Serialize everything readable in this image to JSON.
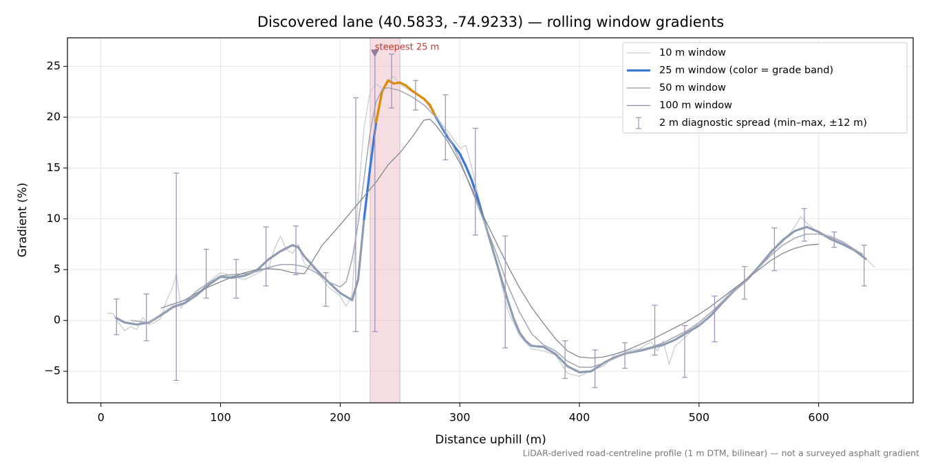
{
  "chart_data": {
    "type": "line",
    "title": "Discovered lane (40.5833, -74.9233) — rolling window gradients",
    "xlabel": "Distance uphill (m)",
    "ylabel": "Gradient (%)",
    "note": "LiDAR-derived road-centreline profile (1 m DTM, bilinear) — not a surveyed asphalt gradient",
    "xlim": [
      -28,
      679
    ],
    "ylim": [
      -8.1,
      27.8
    ],
    "xticks": [
      0,
      100,
      200,
      300,
      400,
      500,
      600
    ],
    "yticks": [
      {
        "value": -5,
        "label": "−5"
      },
      0,
      5,
      10,
      15,
      20,
      25
    ],
    "grid": true,
    "legend": "upper right",
    "steepest": {
      "label": "steepest 25 m",
      "start": 225,
      "end": 250,
      "color": "#e8b4bc",
      "marker": [
        229,
        26.3
      ],
      "marker_color": "#8c7f99",
      "label_color": "#c0392b"
    },
    "series": [
      {
        "name": "10 m window",
        "color": "#c8ccd4",
        "width": 1.3,
        "x": [
          5,
          10,
          15,
          20,
          25,
          30,
          35,
          40,
          45,
          50,
          55,
          60,
          63,
          67,
          70,
          80,
          90,
          100,
          110,
          120,
          130,
          140,
          145,
          150,
          155,
          160,
          165,
          170,
          180,
          190,
          200,
          205,
          210,
          215,
          220,
          225,
          230,
          235,
          240,
          245,
          250,
          260,
          270,
          280,
          290,
          300,
          305,
          310,
          320,
          330,
          340,
          350,
          360,
          370,
          380,
          390,
          400,
          410,
          420,
          430,
          440,
          450,
          460,
          465,
          470,
          475,
          480,
          490,
          500,
          510,
          520,
          530,
          540,
          550,
          560,
          570,
          580,
          585,
          590,
          600,
          610,
          620,
          630,
          640,
          647
        ],
        "values": [
          0.7,
          0.7,
          -0.3,
          -1.0,
          -0.6,
          -0.9,
          0.3,
          -0.4,
          -0.2,
          0.2,
          2.0,
          3.3,
          4.6,
          1.2,
          1.8,
          2.4,
          3.8,
          4.7,
          4.4,
          4.0,
          4.6,
          5.2,
          7.0,
          8.3,
          7.0,
          6.6,
          7.5,
          5.6,
          4.9,
          3.3,
          2.4,
          1.4,
          2.5,
          12.0,
          19.0,
          22.5,
          23.3,
          22.8,
          23.6,
          24.0,
          23.2,
          22.5,
          21.8,
          20.0,
          18.6,
          17.0,
          17.2,
          15.0,
          10.0,
          6.0,
          1.0,
          -1.5,
          -2.8,
          -3.0,
          -3.4,
          -5.2,
          -5.5,
          -4.9,
          -4.5,
          -3.3,
          -3.0,
          -2.8,
          -2.1,
          -3.0,
          -2.0,
          -4.3,
          -2.5,
          -1.5,
          -0.2,
          0.8,
          2.0,
          3.2,
          3.9,
          5.2,
          6.8,
          7.7,
          9.2,
          10.2,
          9.6,
          8.6,
          8.3,
          7.8,
          7.0,
          6.0,
          5.2
        ]
      },
      {
        "name": "25 m window (color = grade band)",
        "color": "#3b78d8",
        "line_color": "#8e9bb0",
        "width": 3.2,
        "grade_bands": [
          {
            "from": 10,
            "color": "#3b78d8"
          },
          {
            "from": 20,
            "color": "#e08a00"
          }
        ],
        "x": [
          12,
          20,
          30,
          40,
          50,
          60,
          70,
          80,
          90,
          100,
          110,
          120,
          130,
          140,
          150,
          160,
          165,
          170,
          180,
          190,
          200,
          210,
          215,
          220,
          225,
          230,
          235,
          240,
          245,
          250,
          255,
          260,
          265,
          270,
          275,
          280,
          285,
          290,
          295,
          300,
          305,
          310,
          315,
          320,
          325,
          330,
          335,
          340,
          345,
          350,
          355,
          360,
          370,
          380,
          390,
          400,
          410,
          420,
          430,
          440,
          450,
          460,
          470,
          480,
          490,
          500,
          510,
          520,
          530,
          540,
          550,
          560,
          570,
          580,
          590,
          600,
          610,
          620,
          630,
          640
        ],
        "values": [
          0.3,
          -0.2,
          -0.4,
          -0.2,
          0.5,
          1.3,
          1.7,
          2.5,
          3.5,
          4.3,
          4.2,
          4.4,
          4.9,
          6.0,
          6.8,
          7.4,
          7.2,
          6.3,
          5.0,
          3.8,
          2.7,
          2.0,
          4.0,
          10.0,
          15.0,
          19.5,
          22.5,
          23.6,
          23.3,
          23.4,
          23.1,
          22.6,
          22.2,
          21.8,
          21.2,
          20.0,
          19.0,
          18.0,
          17.2,
          16.4,
          15.2,
          13.8,
          12.0,
          10.0,
          8.0,
          6.0,
          4.0,
          2.0,
          0.2,
          -1.2,
          -2.0,
          -2.5,
          -2.6,
          -3.3,
          -4.5,
          -5.1,
          -5.0,
          -4.2,
          -3.6,
          -3.2,
          -3.0,
          -2.7,
          -2.4,
          -1.9,
          -1.2,
          -0.5,
          0.5,
          1.8,
          3.0,
          4.0,
          5.3,
          6.7,
          7.9,
          8.8,
          9.2,
          8.7,
          8.0,
          7.5,
          6.9,
          6.0
        ]
      },
      {
        "name": "50 m window",
        "color": "#a3aab6",
        "width": 1.6,
        "x": [
          25,
          40,
          50,
          60,
          70,
          80,
          90,
          100,
          110,
          120,
          130,
          140,
          150,
          160,
          170,
          180,
          190,
          200,
          205,
          210,
          215,
          220,
          225,
          230,
          235,
          240,
          250,
          260,
          270,
          280,
          290,
          300,
          310,
          320,
          330,
          340,
          350,
          360,
          370,
          380,
          390,
          400,
          410,
          420,
          430,
          440,
          450,
          460,
          470,
          480,
          490,
          500,
          510,
          520,
          530,
          540,
          550,
          560,
          570,
          580,
          590,
          600,
          610,
          620,
          630,
          637
        ],
        "values": [
          0,
          -0.2,
          0.6,
          1.4,
          1.8,
          2.9,
          3.7,
          4.4,
          4.5,
          4.6,
          4.8,
          5.2,
          5.5,
          5.5,
          5.3,
          4.7,
          3.8,
          3.3,
          3.8,
          6.0,
          9.5,
          14.0,
          18.5,
          21.5,
          22.7,
          22.9,
          22.6,
          22.0,
          21.2,
          20.0,
          18.2,
          15.8,
          12.8,
          9.8,
          6.8,
          3.5,
          0.8,
          -1.3,
          -2.4,
          -3.0,
          -4.0,
          -4.6,
          -4.6,
          -4.2,
          -3.7,
          -3.2,
          -2.9,
          -2.6,
          -2.2,
          -1.6,
          -1.0,
          -0.2,
          0.8,
          1.9,
          3.0,
          4.0,
          5.2,
          6.4,
          7.4,
          8.1,
          8.5,
          8.5,
          8.2,
          7.7,
          7.0,
          6.5
        ]
      },
      {
        "name": "100 m window",
        "color": "#808894",
        "width": 1.3,
        "x": [
          50,
          60,
          70,
          80,
          90,
          100,
          110,
          120,
          130,
          140,
          150,
          160,
          170,
          175,
          185,
          200,
          215,
          230,
          240,
          250,
          260,
          270,
          275,
          280,
          290,
          300,
          310,
          320,
          330,
          340,
          350,
          360,
          370,
          380,
          390,
          400,
          410,
          420,
          430,
          440,
          450,
          460,
          470,
          480,
          490,
          500,
          510,
          520,
          530,
          540,
          550,
          560,
          570,
          580,
          590,
          600
        ],
        "values": [
          1.2,
          1.6,
          2.0,
          2.7,
          3.3,
          3.8,
          4.3,
          4.7,
          5.0,
          5.1,
          5.0,
          4.7,
          4.6,
          5.5,
          7.4,
          9.4,
          11.5,
          13.6,
          15.3,
          16.5,
          18.0,
          19.7,
          19.8,
          19.2,
          17.6,
          15.5,
          13.0,
          10.2,
          7.8,
          5.4,
          3.2,
          1.3,
          -0.3,
          -1.8,
          -3.0,
          -3.6,
          -3.7,
          -3.6,
          -3.3,
          -2.9,
          -2.4,
          -1.9,
          -1.3,
          -0.7,
          -0.1,
          0.6,
          1.4,
          2.3,
          3.2,
          4.1,
          5.0,
          5.9,
          6.6,
          7.1,
          7.4,
          7.5
        ]
      }
    ],
    "errorbars": {
      "name": "2 m diagnostic spread (min–max, ±12 m)",
      "color": "#9d96b9",
      "x": [
        13,
        38,
        63,
        88,
        113,
        138,
        163,
        188,
        213,
        229,
        243,
        263,
        288,
        313,
        338,
        388,
        413,
        438,
        463,
        488,
        513,
        538,
        563,
        588,
        613,
        638
      ],
      "low": [
        -1.4,
        -2.0,
        -5.9,
        2.2,
        2.2,
        3.4,
        4.5,
        1.4,
        -1.1,
        -1.1,
        20.9,
        20.7,
        15.8,
        8.4,
        -2.7,
        -5.7,
        -6.6,
        -4.7,
        -3.4,
        -5.6,
        -2.1,
        2.1,
        4.9,
        7.8,
        7.2,
        3.4
      ],
      "high": [
        2.1,
        2.6,
        14.5,
        7.0,
        6.0,
        9.2,
        9.3,
        4.7,
        21.9,
        26.5,
        26.2,
        23.6,
        22.2,
        18.9,
        8.3,
        -2.0,
        -2.9,
        -2.2,
        1.5,
        -0.5,
        2.4,
        5.3,
        9.1,
        11.0,
        8.7,
        7.4
      ]
    }
  }
}
